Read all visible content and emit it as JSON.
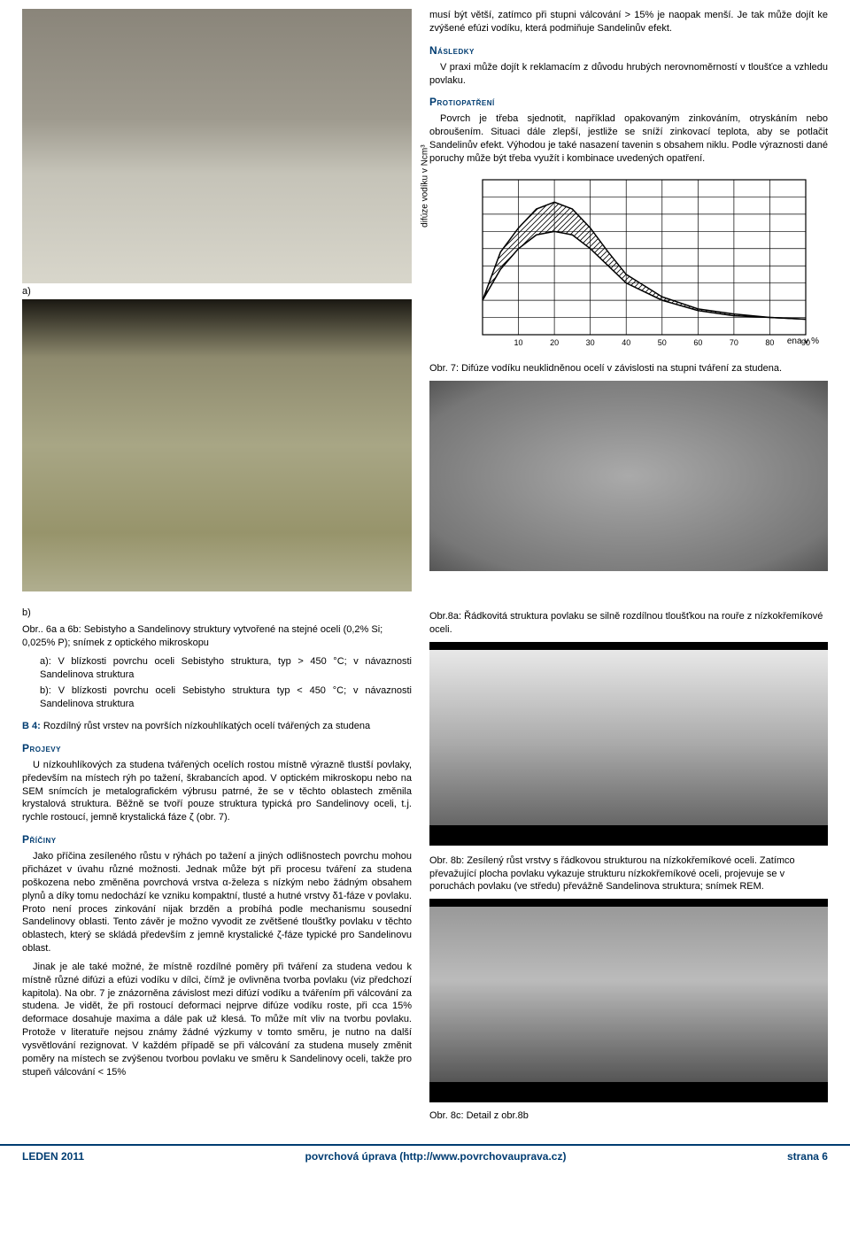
{
  "top": {
    "intro": "musí být větší, zatímco při stupni válcování > 15% je naopak menší. Je tak může dojít ke zvýšené efúzi vodíku, která podmiňuje Sandelinův efekt.",
    "nasledky_h": "Následky",
    "nasledky_p": "V praxi může dojít k reklamacím z důvodu hrubých nerovnoměrností v tloušťce a vzhledu povlaku.",
    "protiopatreni_h": "Protiopatření",
    "protiopatreni_p": "Povrch je třeba sjednotit, například opakovaným zinkováním, otryskáním nebo obroušením. Situaci dále zlepší, jestliže se sníží zinkovací teplota, aby se potlačit Sandelinův efekt. Výhodou je také nasazení tavenin s obsahem niklu. Podle výraznosti dané poruchy může být třeba využít i kombinace uvedených opatření."
  },
  "labels": {
    "a": "a)",
    "b": "b)"
  },
  "chart": {
    "ylabel": "difúze vodíku v Ncm³",
    "xlabel_suffix": "ena v %",
    "x_ticks": [
      10,
      20,
      30,
      40,
      50,
      60,
      70,
      80,
      90
    ],
    "curve_upper": [
      [
        0,
        2
      ],
      [
        5,
        4.8
      ],
      [
        10,
        6.2
      ],
      [
        15,
        7.3
      ],
      [
        20,
        7.7
      ],
      [
        25,
        7.3
      ],
      [
        30,
        6.2
      ],
      [
        35,
        4.8
      ],
      [
        40,
        3.5
      ],
      [
        50,
        2.2
      ],
      [
        60,
        1.5
      ],
      [
        70,
        1.2
      ],
      [
        80,
        1.0
      ],
      [
        90,
        0.9
      ]
    ],
    "curve_lower": [
      [
        0,
        2
      ],
      [
        5,
        3.8
      ],
      [
        10,
        5.0
      ],
      [
        15,
        5.8
      ],
      [
        20,
        6.0
      ],
      [
        25,
        5.8
      ],
      [
        30,
        5.0
      ],
      [
        35,
        4.0
      ],
      [
        40,
        3.0
      ],
      [
        50,
        2.0
      ],
      [
        60,
        1.4
      ],
      [
        70,
        1.1
      ],
      [
        80,
        1.0
      ],
      [
        90,
        0.9
      ]
    ],
    "y_max": 9,
    "grid_color": "#000",
    "fill_pattern": "diag-hatch"
  },
  "captions": {
    "fig7": "Obr. 7: Difúze vodíku neuklidněnou ocelí v závislosti na stupni tváření za studena.",
    "fig6": "Obr.. 6a a 6b: Sebistyho a Sandelinovy struktury vytvořené na stejné oceli (0,2% Si; 0,025% P); snímek z optického mikroskopu",
    "fig6a": "a): V blízkosti povrchu oceli Sebistyho struktura, typ > 450 °C; v návaznosti Sandelinova struktura",
    "fig6b": "b): V blízkosti povrchu oceli Sebistyho struktura typ < 450 °C; v návaznosti Sandelinova struktura",
    "fig8a": "Obr.8a:  Řádkovitá struktura povlaku se silně rozdílnou tloušťkou na rouře z nízkokřemíkové oceli.",
    "fig8b": "Obr. 8b: Zesílený růst vrstvy s řádkovou strukturou na nízkokřemíkové oceli. Zatímco převažující plocha povlaku vykazuje strukturu nízkokřemíkové oceli, projevuje se v poruchách povlaku (ve středu) převážně Sandelinova struktura; snímek REM.",
    "fig8c": "Obr. 8c: Detail z obr.8b"
  },
  "b4": {
    "lead": "B 4:",
    "title": " Rozdílný růst vrstev na površích nízkouhlíkatých ocelí tvářených za studena",
    "projevy_h": "Projevy",
    "projevy_p": "U nízkouhlíkových za studena tvářených ocelích rostou místně výrazně tlustší povlaky, především na místech rýh po tažení, škrabancích apod. V optickém mikroskopu nebo na SEM snímcích je metalografickém výbrusu patrné, že se v těchto oblastech změnila krystalová struktura. Běžně se tvoří pouze struktura typická pro Sandelinovy oceli, t.j. rychle rostoucí, jemně krystalická fáze ζ (obr. 7).",
    "priciny_h": "Příčiny",
    "priciny_p1": "Jako příčina zesíleného růstu v rýhách po tažení a jiných odlišnostech povrchu mohou přicházet v úvahu různé možnosti. Jednak může být při procesu tváření za studena poškozena nebo změněna povrchová vrstva α-železa s nízkým nebo žádným obsahem plynů a díky tomu nedochází ke vzniku kompaktní, tlusté a hutné vrstvy δ1-fáze v povlaku. Proto není proces zinkování nijak brzděn a probíhá podle mechanismu sousední Sandelinovy oblasti. Tento závěr je možno vyvodit ze zvětšené tloušťky povlaku v těchto oblastech, který se skládá především z jemně krystalické ζ-fáze typické pro Sandelinovu oblast.",
    "priciny_p2": "Jinak je ale také možné, že místně rozdílné poměry při tváření za studena vedou k místně různé difúzi a efúzi vodíku v dílci, čímž je ovlivněna tvorba povlaku (viz předchozí kapitola). Na obr. 7 je znázorněna závislost mezi difúzí vodíku a tvářením při válcování za studena. Je vidět, že při rostoucí deformaci nejprve difúze vodíku roste, při cca 15% deformace dosahuje maxima a dále pak už klesá. To může mít vliv na tvorbu povlaku. Protože v literatuře nejsou známy žádné výzkumy v tomto směru, je nutno na další vysvětlování rezignovat. V každém případě se při válcování za studena musely změnit poměry na místech se zvýšenou tvorbou povlaku ve směru k Sandelinovy oceli, takže pro stupeň válcování < 15%"
  },
  "footer": {
    "left": "LEDEN 2011",
    "mid_text": "povrchová úprava (",
    "mid_link": "http://www.povrchovauprava.cz",
    "mid_close": ")",
    "right": "strana 6"
  }
}
